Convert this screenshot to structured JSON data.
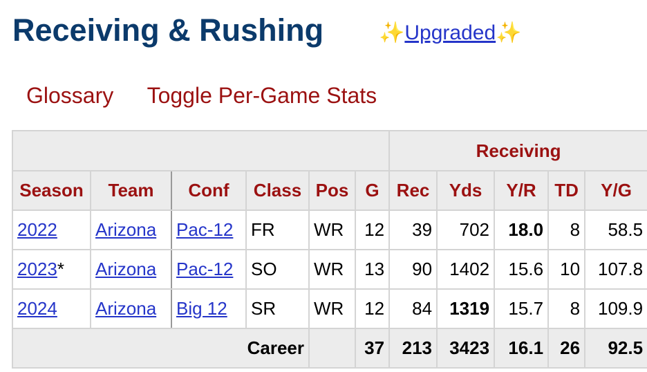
{
  "header": {
    "title": "Receiving & Rushing",
    "badge_prefix": "✨",
    "badge_link": "Upgraded",
    "badge_suffix": "✨"
  },
  "links": [
    "Glossary",
    "Toggle Per-Game Stats"
  ],
  "table": {
    "group_header": "Receiving",
    "columns": [
      "Season",
      "Team",
      "Conf",
      "Class",
      "Pos",
      "G",
      "Rec",
      "Yds",
      "Y/R",
      "TD",
      "Y/G"
    ],
    "rows": [
      [
        "2022",
        "Arizona",
        "Pac-12",
        "FR",
        "WR",
        "12",
        "39",
        "702",
        {
          "text": "18.0",
          "bold": true
        },
        "8",
        "58.5"
      ],
      [
        {
          "text": "2023",
          "suffix": "*"
        },
        "Arizona",
        "Pac-12",
        "SO",
        "WR",
        "13",
        "90",
        "1402",
        "15.6",
        "10",
        "107.8"
      ],
      [
        "2024",
        "Arizona",
        "Big 12",
        "SR",
        "WR",
        "12",
        "84",
        {
          "text": "1319",
          "bold": true
        },
        "15.7",
        "8",
        "109.9"
      ]
    ],
    "career": {
      "label": "Career",
      "values": [
        "37",
        "213",
        "3423",
        "16.1",
        "26",
        "92.5"
      ]
    }
  }
}
